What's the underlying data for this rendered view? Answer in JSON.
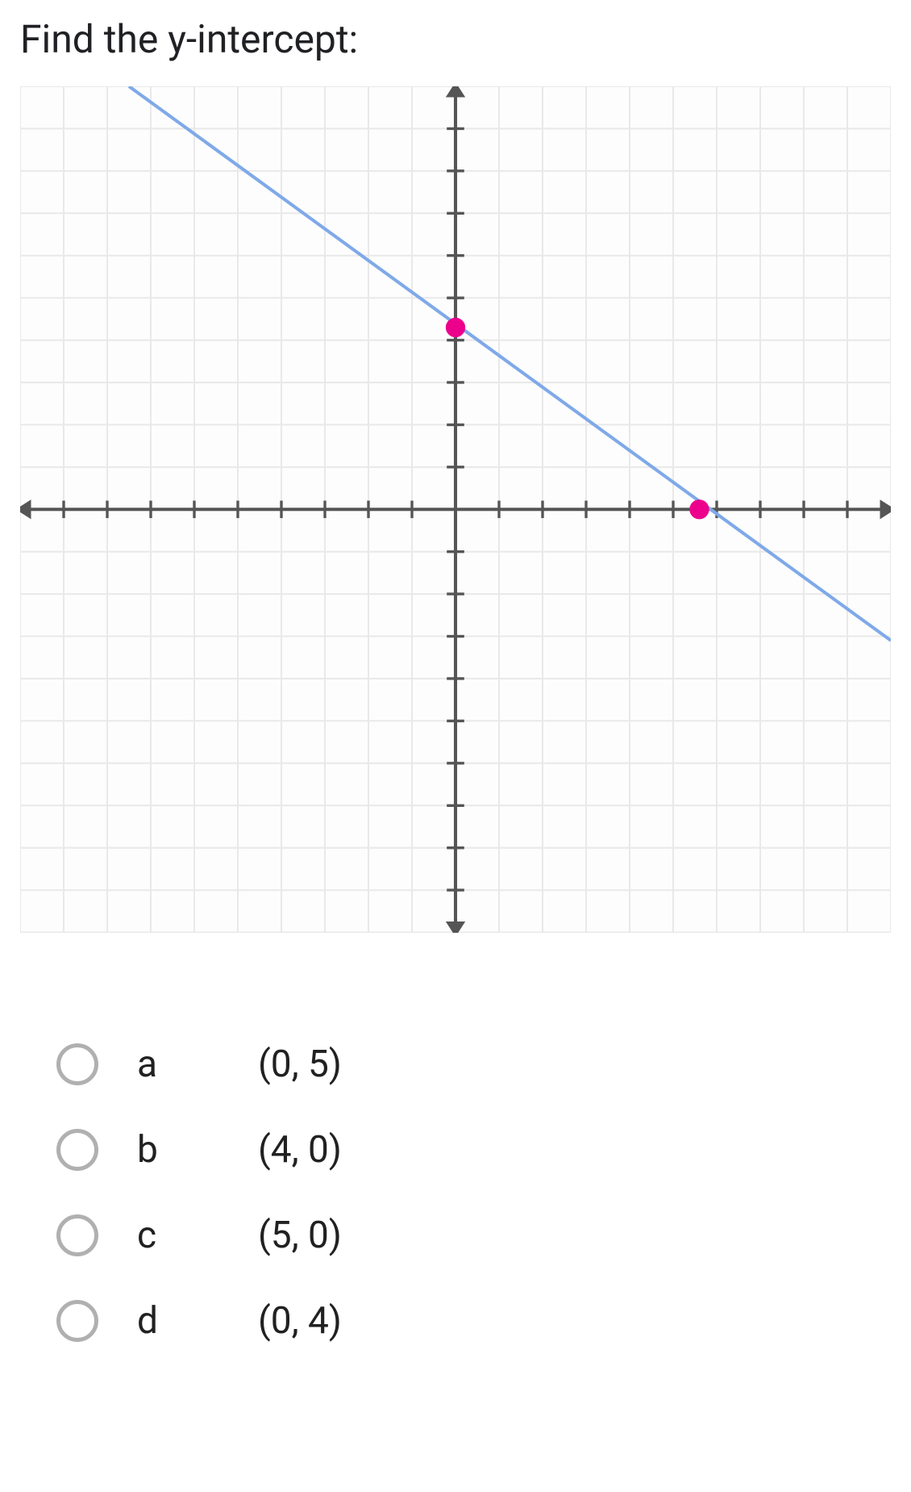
{
  "question": {
    "prompt": "Find the y-intercept:"
  },
  "graph": {
    "type": "line",
    "background_color": "#fdfdfd",
    "grid_color": "#e9e9e9",
    "axis_color": "#555555",
    "tick_color": "#555555",
    "line_color": "#7fa9e8",
    "point_color": "#ec008c",
    "xlim": [
      -10,
      10
    ],
    "ylim": [
      -10,
      10
    ],
    "grid_step": 1,
    "tick_step": 1,
    "line_width": 3,
    "axis_width": 3,
    "point_radius": 9,
    "line_points": [
      [
        -7.5,
        10
      ],
      [
        10,
        -3.1
      ]
    ],
    "highlighted_points": [
      [
        0,
        4.3
      ],
      [
        5.6,
        0
      ]
    ]
  },
  "options": [
    {
      "letter": "a",
      "text": "(0, 5)"
    },
    {
      "letter": "b",
      "text": "(4, 0)"
    },
    {
      "letter": "c",
      "text": "(5, 0)"
    },
    {
      "letter": "d",
      "text": "(0, 4)"
    }
  ]
}
